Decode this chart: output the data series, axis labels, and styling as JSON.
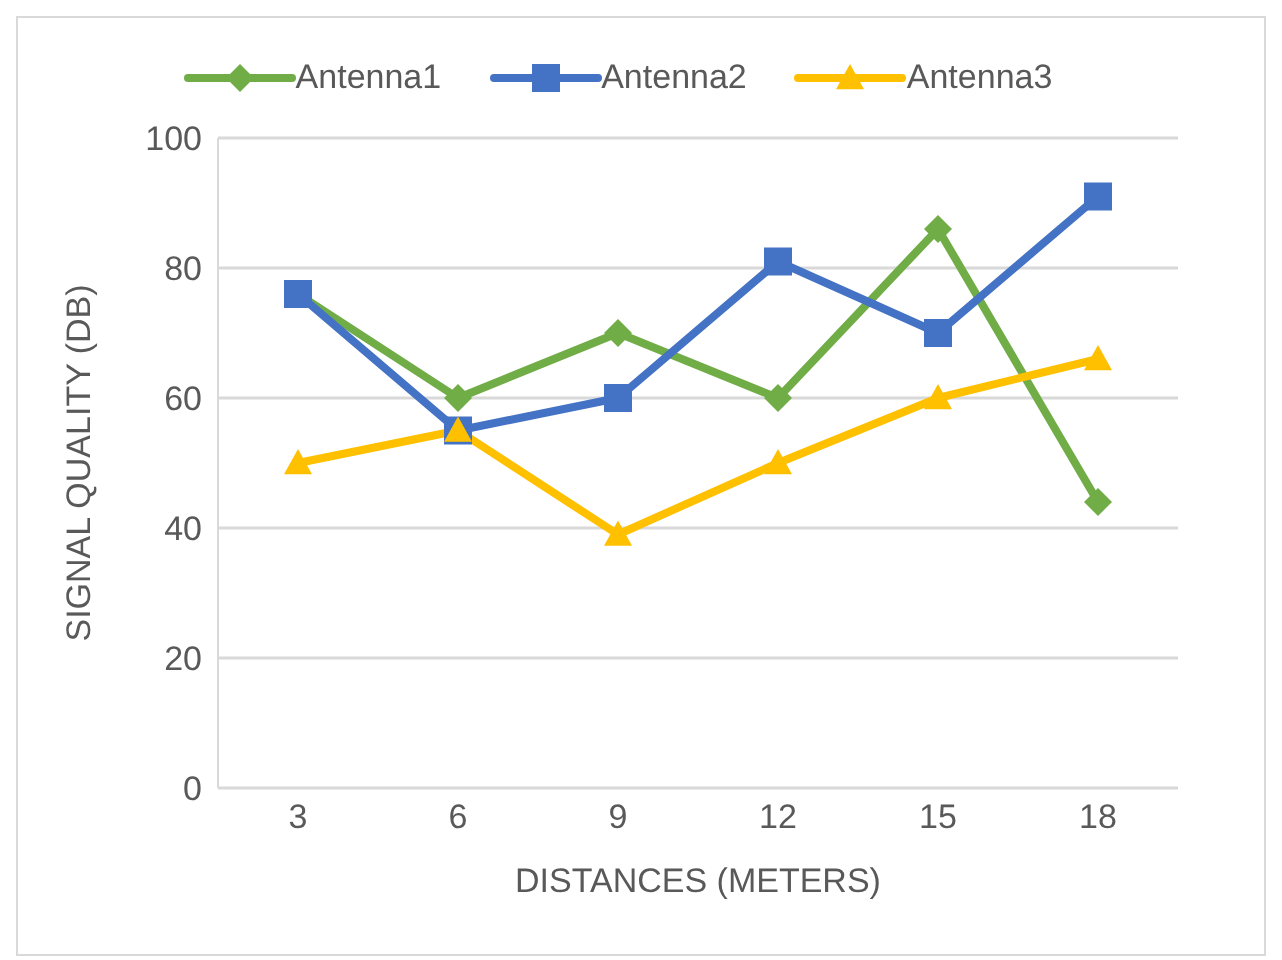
{
  "chart_data": {
    "type": "line",
    "xlabel": "DISTANCES (METERS)",
    "ylabel": "SIGNAL QUALITY (DB)",
    "categories": [
      "3",
      "6",
      "9",
      "12",
      "15",
      "18"
    ],
    "ylim": [
      0,
      100
    ],
    "yticks": [
      0,
      20,
      40,
      60,
      80,
      100
    ],
    "grid": "y",
    "legend": "top",
    "series": [
      {
        "name": "Antenna1",
        "color": "#70ad47",
        "marker": "diamond",
        "values": [
          76,
          60,
          70,
          60,
          86,
          44
        ]
      },
      {
        "name": "Antenna2",
        "color": "#4472c4",
        "marker": "square",
        "values": [
          76,
          55,
          60,
          81,
          70,
          91
        ]
      },
      {
        "name": "Antenna3",
        "color": "#ffc000",
        "marker": "triangle",
        "values": [
          50,
          55,
          39,
          50,
          60,
          66
        ]
      }
    ]
  }
}
